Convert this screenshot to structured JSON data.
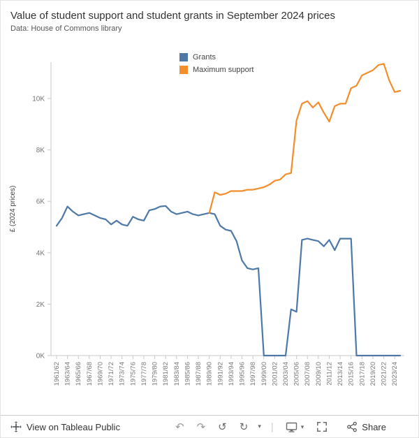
{
  "header": {
    "title": "Value of student support and student grants in September 2024 prices",
    "subtitle": "Data: House of Commons library"
  },
  "legend": {
    "items": [
      {
        "label": "Grants",
        "color": "#4e79a7"
      },
      {
        "label": "Maximum support",
        "color": "#f28e2b"
      }
    ]
  },
  "chart_data": {
    "type": "line",
    "title": "Value of student support and student grants in September 2024 prices",
    "ylabel": "£ (2024 prices)",
    "ylim": [
      0,
      11500
    ],
    "grid": false,
    "legend_position": "top",
    "x_tick_every": 2,
    "yticks": [
      {
        "value": 0,
        "label": "0K"
      },
      {
        "value": 2000,
        "label": "2K"
      },
      {
        "value": 4000,
        "label": "4K"
      },
      {
        "value": 6000,
        "label": "6K"
      },
      {
        "value": 8000,
        "label": "8K"
      },
      {
        "value": 10000,
        "label": "10K"
      }
    ],
    "x": [
      "1961/62",
      "1962/63",
      "1963/64",
      "1964/65",
      "1965/66",
      "1966/67",
      "1967/68",
      "1968/69",
      "1969/70",
      "1970/71",
      "1971/72",
      "1972/73",
      "1973/74",
      "1974/75",
      "1975/76",
      "1976/77",
      "1977/78",
      "1978/79",
      "1979/80",
      "1980/81",
      "1981/82",
      "1982/83",
      "1983/84",
      "1984/85",
      "1985/86",
      "1986/87",
      "1987/88",
      "1988/89",
      "1989/90",
      "1990/91",
      "1991/92",
      "1992/93",
      "1993/94",
      "1994/95",
      "1995/96",
      "1996/97",
      "1997/98",
      "1998/99",
      "1999/00",
      "2000/01",
      "2001/02",
      "2002/03",
      "2003/04",
      "2004/05",
      "2005/06",
      "2006/07",
      "2007/08",
      "2008/09",
      "2009/10",
      "2010/11",
      "2011/12",
      "2012/13",
      "2013/14",
      "2014/15",
      "2015/16",
      "2016/17",
      "2017/18",
      "2018/19",
      "2019/20",
      "2020/21",
      "2021/22",
      "2022/23",
      "2023/24",
      "2024/25"
    ],
    "series": [
      {
        "name": "Grants",
        "color": "#4e79a7",
        "values": [
          5050,
          5350,
          5800,
          5600,
          5450,
          5500,
          5550,
          5450,
          5350,
          5300,
          5100,
          5250,
          5100,
          5050,
          5400,
          5300,
          5250,
          5650,
          5700,
          5800,
          5820,
          5600,
          5500,
          5550,
          5600,
          5500,
          5450,
          5500,
          5550,
          5500,
          5050,
          4900,
          4850,
          4450,
          3700,
          3400,
          3350,
          3400,
          0,
          0,
          0,
          0,
          0,
          1800,
          1700,
          4500,
          4550,
          4500,
          4450,
          4250,
          4500,
          4100,
          4550,
          4550,
          4550,
          0,
          0,
          0,
          0,
          0,
          0,
          0,
          0,
          0
        ]
      },
      {
        "name": "Maximum support",
        "color": "#f28e2b",
        "values": [
          null,
          null,
          null,
          null,
          null,
          null,
          null,
          null,
          null,
          null,
          null,
          null,
          null,
          null,
          null,
          null,
          null,
          null,
          null,
          null,
          null,
          null,
          null,
          null,
          null,
          null,
          null,
          null,
          5550,
          6350,
          6250,
          6300,
          6400,
          6400,
          6400,
          6450,
          6450,
          6500,
          6550,
          6650,
          6800,
          6850,
          7050,
          7100,
          9150,
          9800,
          9900,
          9650,
          9850,
          9450,
          9100,
          9700,
          9800,
          9800,
          10400,
          10500,
          10900,
          11000,
          11100,
          11300,
          11350,
          10700,
          10250,
          10300
        ]
      }
    ]
  },
  "toolbar": {
    "view_label": "View on Tableau Public",
    "undo_icon": "↶",
    "redo_icon": "↷",
    "replay_icon": "↺",
    "refresh_icon": "↻",
    "caret_icon": "▾",
    "divider": "|",
    "share_label": "Share"
  },
  "colors": {
    "accent_blue": "#4e79a7",
    "accent_orange": "#f28e2b"
  }
}
